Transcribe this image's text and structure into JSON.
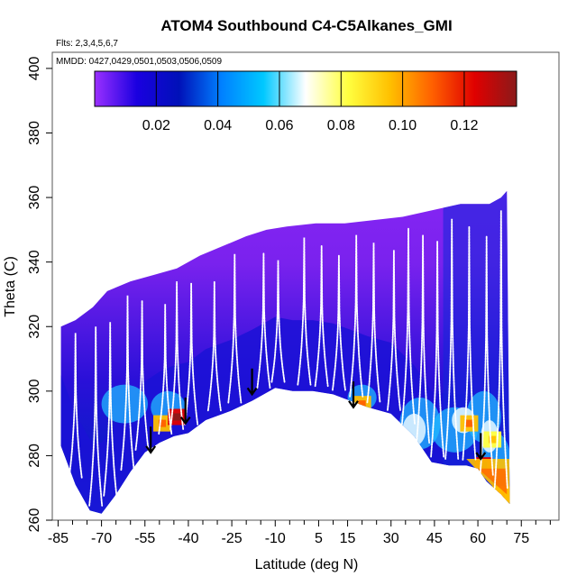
{
  "chart_data": {
    "type": "heatmap",
    "title": "ATOM4 Southbound C4-C5Alkanes_GMI",
    "flights_label": "Flts: 2,3,4,5,6,7",
    "mmdd_label": "MMDD: 0427,0429,0501,0503,0506,0509",
    "xlabel": "Latitude (deg N)",
    "ylabel": "Theta (C)",
    "xlim": [
      -87,
      88
    ],
    "ylim": [
      260,
      405
    ],
    "x_ticks": [
      -85,
      -70,
      -55,
      -40,
      -25,
      -10,
      5,
      15,
      30,
      45,
      60,
      75
    ],
    "y_ticks": [
      260,
      280,
      300,
      320,
      340,
      360,
      380,
      400
    ],
    "colorbar": {
      "min": 0.0,
      "max": 0.137,
      "ticks": [
        0.02,
        0.04,
        0.06,
        0.08,
        0.1,
        0.12
      ],
      "tick_labels": [
        "0.02",
        "0.04",
        "0.06",
        "0.08",
        "0.10",
        "0.12"
      ],
      "colors": [
        "#9b30ff",
        "#1a00e0",
        "#0011b8",
        "#0080ff",
        "#00c8ff",
        "#ffffff",
        "#ffff40",
        "#ffc000",
        "#ff6000",
        "#e00000",
        "#8b1a1a"
      ]
    },
    "upper_boundary": [
      [
        -84,
        320
      ],
      [
        -79,
        322
      ],
      [
        -73,
        326
      ],
      [
        -68,
        331
      ],
      [
        -60,
        334
      ],
      [
        -52,
        336
      ],
      [
        -44,
        338
      ],
      [
        -36,
        342
      ],
      [
        -28,
        345
      ],
      [
        -20,
        348
      ],
      [
        -13,
        350
      ],
      [
        -6,
        351
      ],
      [
        4,
        352
      ],
      [
        14,
        352
      ],
      [
        24,
        353
      ],
      [
        34,
        354
      ],
      [
        44,
        356
      ],
      [
        54,
        358
      ],
      [
        64,
        358
      ],
      [
        68,
        360
      ],
      [
        70,
        362
      ]
    ],
    "lower_boundary": [
      [
        -84,
        283
      ],
      [
        -79,
        271
      ],
      [
        -74,
        263
      ],
      [
        -70,
        262
      ],
      [
        -65,
        268
      ],
      [
        -60,
        275
      ],
      [
        -55,
        281
      ],
      [
        -50,
        284
      ],
      [
        -45,
        286
      ],
      [
        -40,
        287
      ],
      [
        -34,
        291
      ],
      [
        -25,
        294
      ],
      [
        -18,
        297
      ],
      [
        -10,
        301
      ],
      [
        -4,
        300
      ],
      [
        3,
        300
      ],
      [
        10,
        299
      ],
      [
        16,
        297
      ],
      [
        22,
        295
      ],
      [
        30,
        293
      ],
      [
        38,
        286
      ],
      [
        44,
        278
      ],
      [
        50,
        277
      ],
      [
        56,
        277
      ],
      [
        60,
        276
      ],
      [
        63,
        272
      ],
      [
        68,
        268
      ],
      [
        71,
        265
      ]
    ],
    "high_patches": [
      {
        "lat": -49,
        "theta": 290,
        "value": 0.1
      },
      {
        "lat": -44,
        "theta": 292,
        "value": 0.12
      },
      {
        "lat": 20,
        "theta": 296,
        "value": 0.1
      },
      {
        "lat": 57,
        "theta": 290,
        "value": 0.09
      },
      {
        "lat": 65,
        "theta": 285,
        "value": 0.08
      },
      {
        "lat": 62,
        "theta": 277,
        "value": 0.12
      },
      {
        "lat": 68,
        "theta": 268,
        "value": 0.1
      }
    ],
    "arrows": [
      {
        "lat": -53,
        "theta": 284
      },
      {
        "lat": -41,
        "theta": 293
      },
      {
        "lat": -18,
        "theta": 302
      },
      {
        "lat": 17,
        "theta": 298
      },
      {
        "lat": 61,
        "theta": 282
      }
    ],
    "profile_centers": [
      -79,
      -72,
      -67,
      -61,
      -56,
      -48,
      -44,
      -39,
      -31,
      -24,
      -14,
      -9,
      0,
      6,
      12,
      18,
      24,
      31,
      36,
      41,
      46,
      51,
      57,
      63,
      68
    ]
  }
}
